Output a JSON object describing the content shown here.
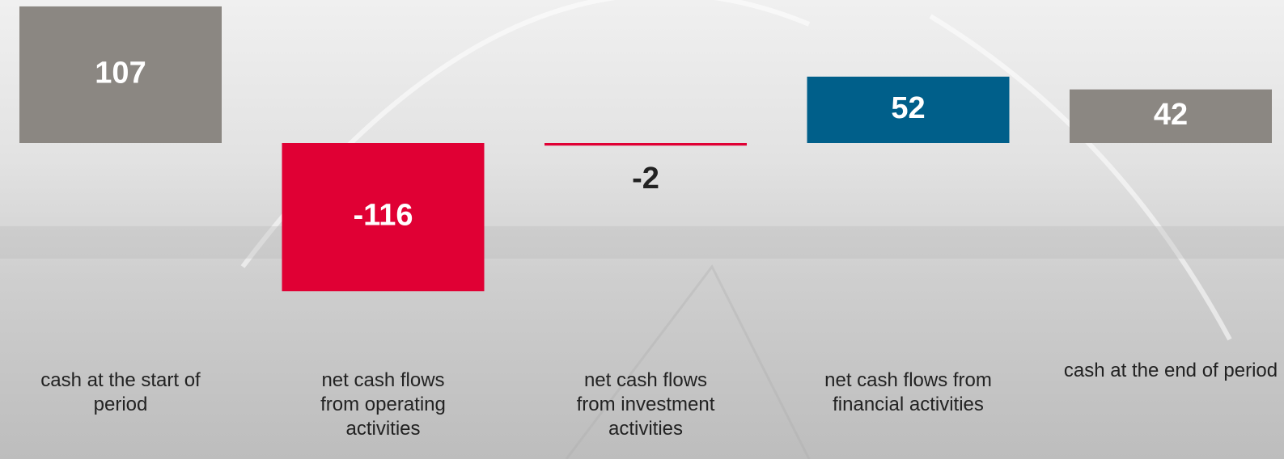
{
  "chart_data": {
    "type": "bar",
    "categories": [
      "cash at the start of period",
      "net cash flows from operating activities",
      "net cash flows from investment activities",
      "net cash flows from financial activities",
      "cash at the end of period"
    ],
    "values": [
      107,
      -116,
      -2,
      52,
      42
    ],
    "colors": [
      "#8b8782",
      "#e00034",
      "#e00034",
      "#005f8a",
      "#8b8782"
    ]
  }
}
